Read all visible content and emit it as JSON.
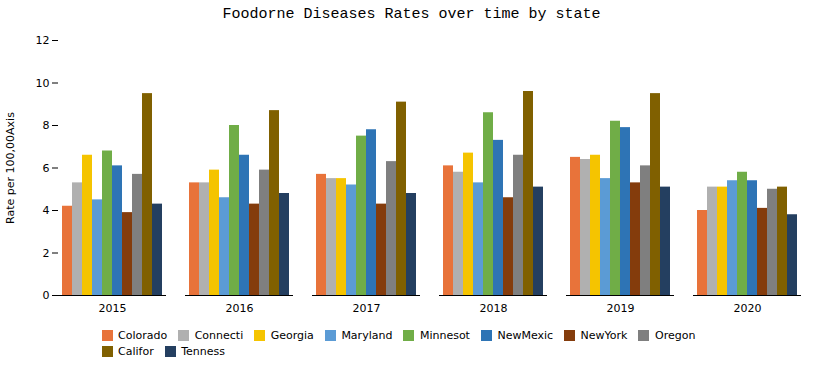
{
  "chart_data": {
    "type": "bar",
    "title": "Foodorne Diseases Rates over time by state",
    "ylabel": "Rate per 100,00Axis",
    "categories": [
      "2015",
      "2016",
      "2017",
      "2018",
      "2019",
      "2020"
    ],
    "series": [
      {
        "name": "Colorado",
        "color": "#E8733A",
        "values": [
          4.2,
          5.3,
          5.7,
          6.1,
          6.5,
          4.0
        ]
      },
      {
        "name": "Connecti",
        "color": "#B0B0B0",
        "values": [
          5.3,
          5.3,
          5.5,
          5.8,
          6.4,
          5.1
        ]
      },
      {
        "name": "Georgia",
        "color": "#F5C400",
        "values": [
          6.6,
          5.9,
          5.5,
          6.7,
          6.6,
          5.1
        ]
      },
      {
        "name": "Maryland",
        "color": "#5B9BD5",
        "values": [
          4.5,
          4.6,
          5.2,
          5.3,
          5.5,
          5.4
        ]
      },
      {
        "name": "Minnesot",
        "color": "#70AD47",
        "values": [
          6.8,
          8.0,
          7.5,
          8.6,
          8.2,
          5.8
        ]
      },
      {
        "name": "NewMexic",
        "color": "#2E74B5",
        "values": [
          6.1,
          6.6,
          7.8,
          7.3,
          7.9,
          5.4
        ]
      },
      {
        "name": "NewYork",
        "color": "#843C0C",
        "values": [
          3.9,
          4.3,
          4.3,
          4.6,
          5.3,
          4.1
        ]
      },
      {
        "name": "Oregon",
        "color": "#7F7F7F",
        "values": [
          5.7,
          5.9,
          6.3,
          6.6,
          6.1,
          5.0
        ]
      },
      {
        "name": "Califor",
        "color": "#806000",
        "values": [
          9.5,
          8.7,
          9.1,
          9.6,
          9.5,
          5.1
        ]
      },
      {
        "name": "Tenness",
        "color": "#243F60",
        "values": [
          4.3,
          4.8,
          4.8,
          5.1,
          5.1,
          3.8
        ]
      }
    ],
    "ylim": [
      0,
      12
    ],
    "yticks": [
      0,
      2,
      4,
      6,
      8,
      10,
      12
    ],
    "grid": false,
    "legend": "bottom"
  }
}
